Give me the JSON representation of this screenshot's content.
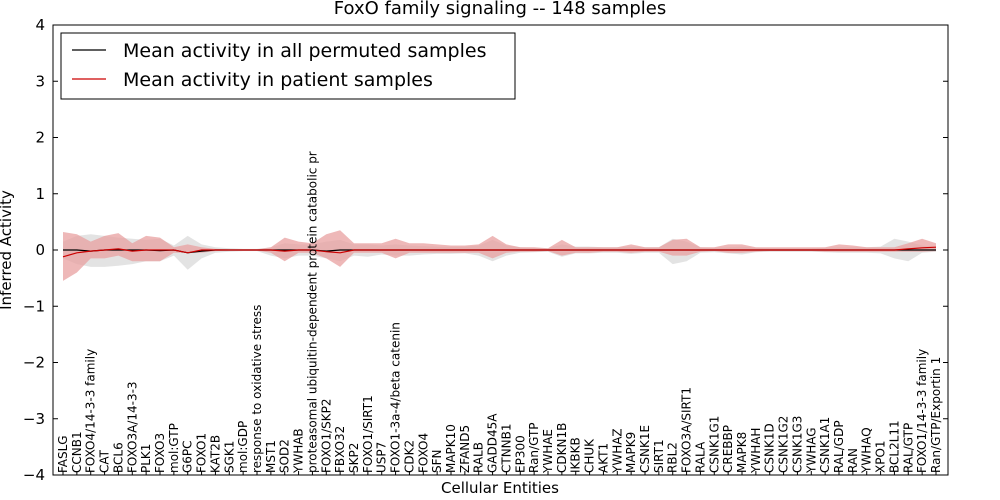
{
  "chart_data": {
    "type": "line",
    "title": "FoxO family signaling -- 148 samples",
    "xlabel": "Cellular Entities",
    "ylabel": "Inferred Activity",
    "ylim": [
      -4,
      4
    ],
    "yticks": [
      -4,
      -3,
      -2,
      -1,
      0,
      1,
      2,
      3,
      4
    ],
    "categories": [
      "FASLG",
      "CCNB1",
      "FOXO4/14-3-3 family",
      "CAT",
      "BCL6",
      "FOXO3A/14-3-3",
      "PLK1",
      "FOXO3",
      "mol:GTP",
      "G6PC",
      "FOXO1",
      "KAT2B",
      "SGK1",
      "mol:GDP",
      "response to oxidative stress",
      "MST1",
      "SOD2",
      "YWHAB",
      "proteasomal ubiquitin-dependent protein catabolic pr",
      "FOXO1/SKP2",
      "FBXO32",
      "SKP2",
      "FOXO1/SIRT1",
      "USP7",
      "FOXO1-3a-4/beta catenin",
      "CDK2",
      "FOXO4",
      "SFN",
      "MAPK10",
      "ZFAND5",
      "RALB",
      "GADD45A",
      "CTNNB1",
      "EP300",
      "Ran/GTP",
      "YWHAE",
      "CDKN1B",
      "IKBKB",
      "CHUK",
      "AKT1",
      "YWHAZ",
      "MAPK9",
      "CSNK1E",
      "SIRT1",
      "RBL2",
      "FOXO3A/SIRT1",
      "RALA",
      "CSNK1G1",
      "CREBBP",
      "MAPK8",
      "YWHAH",
      "CSNK1D",
      "CSNK1G2",
      "CSNK1G3",
      "YWHAG",
      "CSNK1A1",
      "RAL/GDP",
      "RAN",
      "YWHAQ",
      "XPO1",
      "BCL2L11",
      "RAL/GTP",
      "FOXO1/14-3-3 family",
      "Ran/GTP/Exportin 1"
    ],
    "series": [
      {
        "name": "Mean activity in all permuted samples",
        "color": "#000000",
        "band_color": "#cccccc",
        "values": [
          0.0,
          0.0,
          -0.02,
          0.0,
          0.0,
          0.0,
          0.0,
          -0.01,
          0.0,
          -0.05,
          -0.02,
          0.0,
          0.0,
          0.0,
          0.0,
          0.0,
          0.0,
          0.0,
          0.0,
          -0.02,
          0.0,
          0.0,
          0.0,
          0.0,
          0.0,
          0.0,
          0.0,
          0.0,
          0.0,
          0.0,
          0.0,
          0.0,
          0.0,
          0.0,
          0.0,
          0.0,
          0.0,
          0.0,
          0.0,
          0.0,
          0.0,
          0.0,
          0.0,
          0.0,
          0.0,
          0.0,
          0.0,
          0.0,
          0.0,
          0.0,
          0.0,
          0.0,
          0.0,
          0.0,
          0.0,
          0.0,
          0.0,
          0.0,
          0.0,
          0.0,
          0.0,
          0.0,
          0.0,
          0.0
        ],
        "lower": [
          -0.15,
          -0.25,
          -0.3,
          -0.3,
          -0.28,
          -0.25,
          -0.2,
          -0.2,
          -0.1,
          -0.35,
          -0.15,
          -0.05,
          -0.03,
          -0.02,
          -0.02,
          -0.1,
          -0.15,
          -0.1,
          -0.1,
          -0.15,
          -0.2,
          -0.1,
          -0.12,
          -0.08,
          -0.1,
          -0.1,
          -0.08,
          -0.07,
          -0.07,
          -0.06,
          -0.1,
          -0.2,
          -0.1,
          -0.05,
          -0.04,
          -0.03,
          -0.12,
          -0.06,
          -0.06,
          -0.05,
          -0.05,
          -0.07,
          -0.05,
          -0.05,
          -0.25,
          -0.2,
          -0.05,
          -0.04,
          -0.06,
          -0.08,
          -0.04,
          -0.03,
          -0.03,
          -0.03,
          -0.03,
          -0.04,
          -0.05,
          -0.05,
          -0.05,
          -0.06,
          -0.15,
          -0.2,
          -0.05,
          -0.03
        ],
        "upper": [
          0.15,
          0.25,
          0.28,
          0.25,
          0.22,
          0.2,
          0.18,
          0.2,
          0.08,
          0.25,
          0.1,
          0.05,
          0.03,
          0.02,
          0.02,
          0.05,
          0.12,
          0.1,
          0.1,
          0.15,
          0.18,
          0.1,
          0.1,
          0.08,
          0.1,
          0.08,
          0.07,
          0.06,
          0.06,
          0.06,
          0.08,
          0.18,
          0.08,
          0.05,
          0.04,
          0.03,
          0.1,
          0.06,
          0.06,
          0.05,
          0.05,
          0.06,
          0.05,
          0.05,
          0.2,
          0.15,
          0.05,
          0.04,
          0.05,
          0.06,
          0.04,
          0.03,
          0.03,
          0.03,
          0.03,
          0.04,
          0.05,
          0.05,
          0.05,
          0.06,
          0.2,
          0.15,
          0.08,
          0.05
        ]
      },
      {
        "name": "Mean activity in patient samples",
        "color": "#cc0000",
        "band_color": "#e8a0a0",
        "values": [
          -0.12,
          -0.05,
          -0.02,
          0.0,
          0.02,
          -0.02,
          0.0,
          0.0,
          0.0,
          -0.05,
          0.0,
          0.0,
          0.0,
          0.0,
          0.0,
          0.0,
          -0.02,
          0.0,
          0.0,
          -0.03,
          -0.05,
          0.0,
          0.0,
          0.0,
          0.0,
          0.0,
          0.0,
          0.0,
          0.0,
          0.0,
          0.0,
          0.0,
          0.0,
          0.0,
          0.0,
          0.0,
          0.0,
          0.0,
          0.0,
          0.0,
          0.0,
          0.0,
          0.0,
          0.0,
          0.0,
          0.0,
          0.0,
          0.0,
          0.0,
          0.0,
          0.0,
          0.0,
          0.0,
          0.0,
          0.0,
          0.0,
          0.0,
          0.0,
          0.0,
          0.0,
          0.0,
          0.02,
          0.04,
          0.05
        ],
        "lower": [
          -0.55,
          -0.4,
          -0.15,
          -0.15,
          -0.1,
          -0.2,
          -0.2,
          -0.2,
          -0.05,
          -0.05,
          -0.05,
          -0.02,
          -0.01,
          -0.01,
          -0.01,
          -0.05,
          -0.2,
          -0.05,
          -0.05,
          -0.15,
          -0.3,
          -0.05,
          -0.05,
          -0.05,
          -0.15,
          -0.05,
          -0.05,
          -0.05,
          -0.05,
          -0.05,
          -0.05,
          -0.15,
          -0.05,
          -0.03,
          -0.03,
          -0.02,
          -0.1,
          -0.05,
          -0.05,
          -0.03,
          -0.03,
          -0.05,
          -0.03,
          -0.03,
          -0.1,
          -0.1,
          -0.03,
          -0.02,
          -0.05,
          -0.05,
          -0.03,
          -0.02,
          -0.02,
          -0.02,
          -0.02,
          -0.03,
          -0.03,
          -0.03,
          -0.03,
          -0.03,
          -0.03,
          -0.03,
          -0.03,
          -0.02
        ],
        "upper": [
          0.32,
          0.28,
          0.15,
          0.25,
          0.3,
          0.12,
          0.25,
          0.22,
          0.05,
          0.1,
          0.05,
          0.02,
          0.01,
          0.01,
          0.01,
          0.05,
          0.22,
          0.15,
          0.12,
          0.28,
          0.35,
          0.12,
          0.12,
          0.12,
          0.2,
          0.12,
          0.12,
          0.1,
          0.08,
          0.08,
          0.1,
          0.25,
          0.1,
          0.05,
          0.05,
          0.03,
          0.18,
          0.05,
          0.05,
          0.05,
          0.05,
          0.1,
          0.05,
          0.05,
          0.18,
          0.2,
          0.05,
          0.05,
          0.1,
          0.1,
          0.05,
          0.05,
          0.05,
          0.05,
          0.05,
          0.05,
          0.1,
          0.08,
          0.05,
          0.05,
          0.05,
          0.12,
          0.2,
          0.12
        ]
      }
    ],
    "legend": "top-left"
  }
}
